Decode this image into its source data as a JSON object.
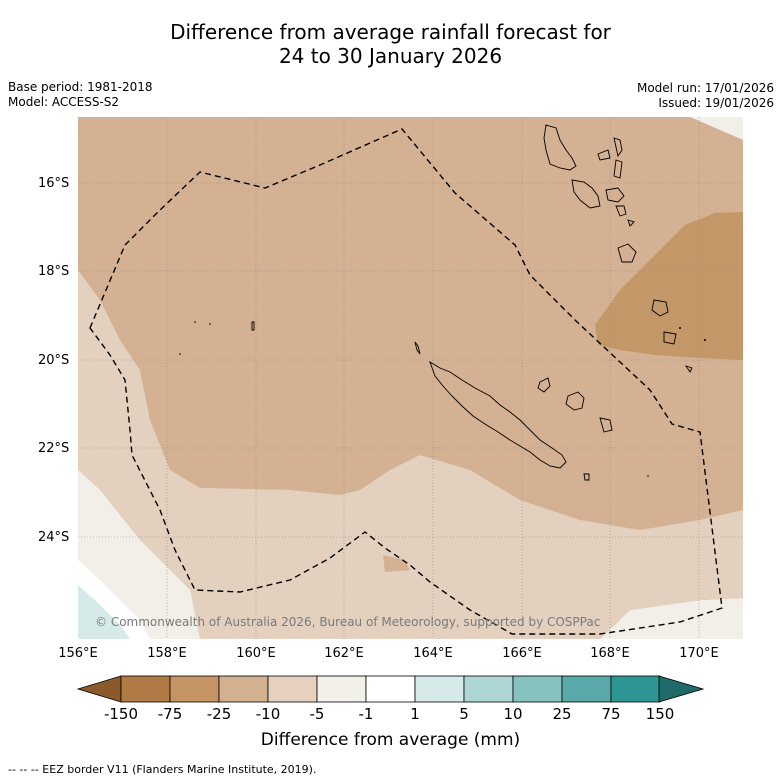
{
  "title": {
    "line1": "Difference from average rainfall forecast for",
    "line2": "24 to 30 January 2026"
  },
  "meta": {
    "base_period": "Base period: 1981-2018",
    "model": "Model: ACCESS-S2",
    "model_run": "Model run: 17/01/2026",
    "issued": "Issued: 19/01/2026"
  },
  "map": {
    "lat_labels": [
      "16°S",
      "18°S",
      "20°S",
      "22°S",
      "24°S"
    ],
    "lon_labels": [
      "156°E",
      "158°E",
      "160°E",
      "162°E",
      "164°E",
      "166°E",
      "168°E",
      "170°E"
    ],
    "copyright": "© Commonwealth of Australia 2026, Bureau of Meteorology, supported by COSPPac",
    "extent": {
      "lon_min": 156,
      "lon_max": 171,
      "lat_top": -14.5,
      "lat_bottom": -26.3
    }
  },
  "colorbar": {
    "labels": [
      "-150",
      "-75",
      "-25",
      "-10",
      "-5",
      "-1",
      "1",
      "5",
      "10",
      "25",
      "75",
      "150"
    ],
    "colors": [
      "#8b5a2b",
      "#b07a45",
      "#c49464",
      "#d3b090",
      "#e6d1bf",
      "#f3efe9",
      "#ffffff",
      "#d6ebe9",
      "#aed6d5",
      "#86c3c0",
      "#59a9a8",
      "#2f9793",
      "#1e6b69"
    ],
    "title": "Difference from average (mm)"
  },
  "legend": {
    "eez_note": "--  --  -- EEZ border V11 (Flanders Marine Institute, 2019)."
  }
}
